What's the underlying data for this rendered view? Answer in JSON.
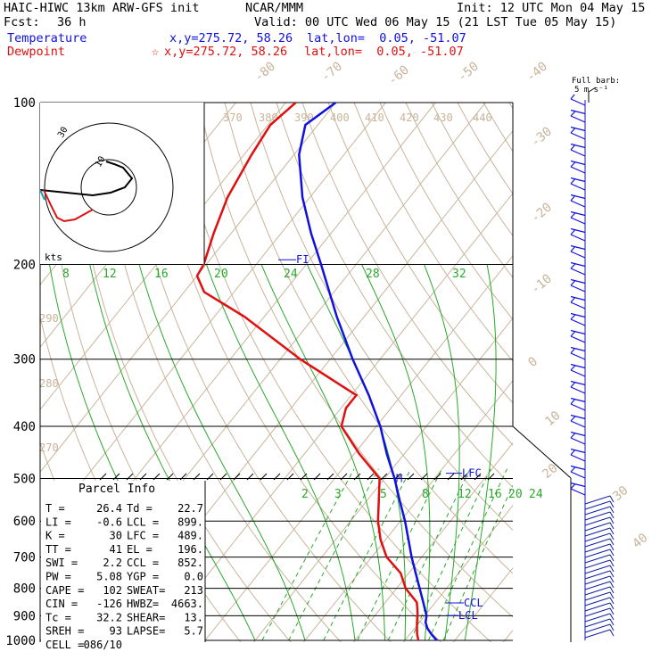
{
  "header": {
    "model": "HAIC-HIWC 13km ARW-GFS init",
    "org": "NCAR/MMM",
    "init": "Init: 12 UTC Mon 04 May 15",
    "fcst_label": "Fcst:",
    "fcst_value": "36 h",
    "valid": "Valid: 00 UTC Wed 06 May 15 (21 LST Tue 05 May 15)",
    "temp_label": "Temperature",
    "temp_xy": "x,y=275.72, 58.26",
    "temp_latlon": "lat,lon=  0.05, -51.07",
    "dew_label": "Dewpoint",
    "dew_xy": "x,y=275.72, 58.26",
    "dew_latlon": "lat,lon=  0.05, -51.07",
    "barb_title1": "Full barb:",
    "barb_title2": "5 m s⁻¹",
    "hodo_units": "kts"
  },
  "colors": {
    "temperature": "#1010e0",
    "dewpoint": "#e01010",
    "isotherm": "#c8b49a",
    "dry_adiabat": "#c8b49a",
    "moist_adiabat": "#2aa82a",
    "mixing_ratio": "#2aa82a",
    "wind_barb": "#1010e0",
    "isobar": "#000000"
  },
  "parcel": {
    "title": "Parcel Info",
    "rows": [
      [
        "T  =",
        "26.4",
        "Td =",
        "22.7"
      ],
      [
        "LI =",
        "-0.6",
        "LCL =",
        "899."
      ],
      [
        "K  =",
        "30",
        "LFC =",
        "489."
      ],
      [
        "TT =",
        "41",
        "EL  =",
        "196."
      ],
      [
        "SWI =",
        "2.2",
        "CCL =",
        "852."
      ],
      [
        "PW =",
        "5.08",
        "YGP =",
        "0.0"
      ],
      [
        "CAPE =",
        "102",
        "SWEAT=",
        "213"
      ],
      [
        "CIN =",
        "-126",
        "HWBZ=",
        "4663."
      ],
      [
        "Tc =",
        "32.2",
        "SHEAR=",
        "13."
      ],
      [
        "SREH =",
        "93",
        "LAPSE=",
        "5.7"
      ],
      [
        "CELL =",
        "086/10",
        "",
        ""
      ]
    ]
  },
  "chart_data": {
    "type": "line",
    "title": "",
    "xlabel": "",
    "ylabel": "",
    "pressure_levels": [
      1000,
      900,
      800,
      700,
      600,
      500,
      400,
      300,
      200,
      100
    ],
    "pressure_tick_labels": [
      "1000",
      "900",
      "800",
      "700",
      "600",
      "500",
      "400",
      "300",
      "200",
      "100"
    ],
    "isotherm_labels": [
      "-80",
      "-70",
      "-60",
      "-50",
      "-40",
      "-30",
      "-20",
      "-10",
      "0",
      "10",
      "20",
      "30",
      "40"
    ],
    "theta_labels": [
      "370",
      "380",
      "390",
      "400",
      "410",
      "420",
      "430",
      "440",
      "290",
      "280",
      "270"
    ],
    "mixing_ratio_labels_upper": [
      "8",
      "12",
      "16",
      "20",
      "24",
      "28",
      "32"
    ],
    "mixing_ratio_labels_lower": [
      "2",
      "3",
      "5",
      "8",
      "12",
      "16",
      "20",
      "24"
    ],
    "markers": [
      {
        "label": "LFC",
        "p": 489
      },
      {
        "label": "CCL",
        "p": 852
      },
      {
        "label": "LCL",
        "p": 899
      },
      {
        "label": "FI",
        "p": 196
      },
      {
        "label": "M",
        "p": 500
      }
    ],
    "series": [
      {
        "name": "Temperature",
        "p": [
          1000,
          975,
          950,
          925,
          900,
          875,
          850,
          800,
          750,
          700,
          650,
          600,
          550,
          500,
          450,
          400,
          350,
          300,
          250,
          200,
          175,
          150,
          125,
          110,
          100
        ],
        "t": [
          26.4,
          24.4,
          22.6,
          21.2,
          20.4,
          19.0,
          17.6,
          14.6,
          11.4,
          8.0,
          4.6,
          0.9,
          -3.4,
          -8.0,
          -13.5,
          -19.2,
          -26.5,
          -35.5,
          -45.5,
          -57.0,
          -64.0,
          -71.5,
          -79.0,
          -82.5,
          -80.0
        ]
      },
      {
        "name": "Dewpoint",
        "p": [
          1000,
          975,
          950,
          925,
          900,
          875,
          850,
          800,
          750,
          700,
          650,
          600,
          550,
          500,
          450,
          400,
          370,
          350,
          300,
          250,
          225,
          210,
          200,
          175,
          150,
          125,
          110,
          100
        ],
        "t": [
          22.7,
          21.5,
          20.5,
          19.5,
          18.6,
          17.5,
          16.3,
          11.8,
          8.4,
          3.0,
          -1.0,
          -4.5,
          -7.6,
          -11.0,
          -19.0,
          -27.0,
          -29.0,
          -29.0,
          -46.0,
          -64.0,
          -76.0,
          -80.0,
          -80.5,
          -83.5,
          -86.5,
          -88.5,
          -89.5,
          -88.0
        ]
      }
    ],
    "wind_profile_p": [
      1000,
      975,
      950,
      925,
      900,
      875,
      850,
      800,
      750,
      700,
      650,
      600,
      550,
      500,
      450,
      400,
      350,
      300,
      250,
      200,
      175,
      150,
      125,
      100
    ],
    "grid": true
  }
}
